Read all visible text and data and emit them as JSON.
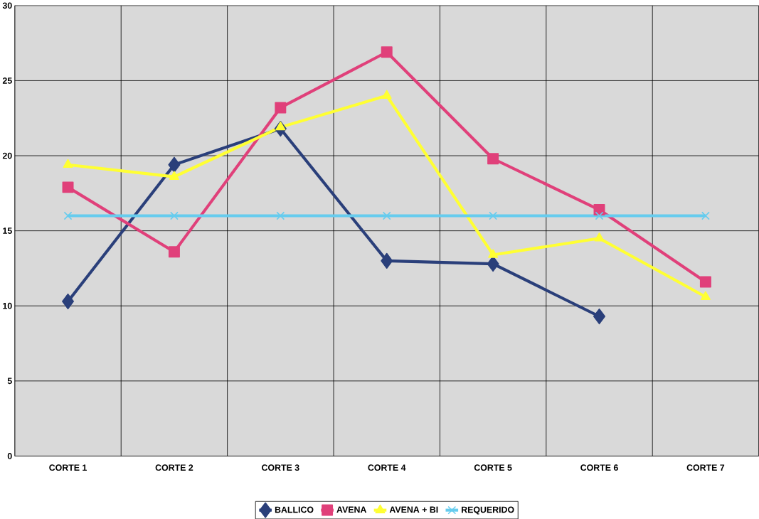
{
  "chart_data": {
    "type": "line",
    "categories": [
      "CORTE 1",
      "CORTE 2",
      "CORTE 3",
      "CORTE 4",
      "CORTE 5",
      "CORTE 6",
      "CORTE 7"
    ],
    "series": [
      {
        "name": "BALLICO",
        "color": "#2a3f7a",
        "marker": "diamond",
        "values": [
          10.3,
          19.4,
          21.8,
          13.0,
          12.8,
          9.3,
          null
        ]
      },
      {
        "name": "AVENA",
        "color": "#e0407a",
        "marker": "square",
        "values": [
          17.9,
          13.6,
          23.2,
          26.9,
          19.8,
          16.4,
          11.6
        ]
      },
      {
        "name": "AVENA + BI",
        "color": "#ffff33",
        "marker": "triangle",
        "values": [
          19.4,
          18.6,
          21.9,
          24.0,
          13.4,
          14.5,
          10.6
        ]
      },
      {
        "name": "REQUERIDO",
        "color": "#66ccee",
        "marker": "cross",
        "values": [
          16,
          16,
          16,
          16,
          16,
          16,
          16
        ]
      }
    ],
    "ylim": [
      0,
      30
    ],
    "yticks": [
      0,
      5,
      10,
      15,
      20,
      25,
      30
    ],
    "grid": true,
    "legend": "bottom",
    "line_style": "solid"
  }
}
